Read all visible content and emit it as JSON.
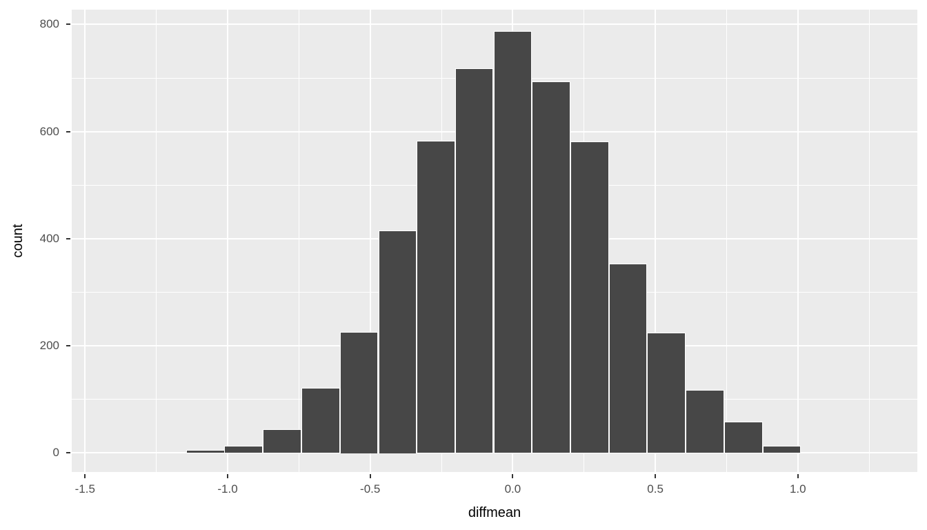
{
  "chart_data": {
    "type": "bar",
    "subtype": "histogram",
    "title": "",
    "xlabel": "diffmean",
    "ylabel": "count",
    "x_ticks": [
      {
        "value": -1.5,
        "label": "-1.5"
      },
      {
        "value": -1.0,
        "label": "-1.0"
      },
      {
        "value": -0.5,
        "label": "-0.5"
      },
      {
        "value": 0.0,
        "label": "0.0"
      },
      {
        "value": 0.5,
        "label": "0.5"
      },
      {
        "value": 1.0,
        "label": "1.0"
      }
    ],
    "y_ticks": [
      {
        "value": 0,
        "label": "0"
      },
      {
        "value": 200,
        "label": "200"
      },
      {
        "value": 400,
        "label": "400"
      },
      {
        "value": 600,
        "label": "600"
      },
      {
        "value": 800,
        "label": "800"
      }
    ],
    "x_minor_gridlines": [
      -1.25,
      -0.75,
      -0.25,
      0.25,
      0.75,
      1.25
    ],
    "y_minor_gridlines": [
      100,
      300,
      500,
      700
    ],
    "xlim": [
      -1.5466,
      1.4189
    ],
    "ylim": [
      -35.5,
      827.5
    ],
    "bin_width": 0.1348,
    "bins": [
      {
        "center": -1.348,
        "count": 2
      },
      {
        "center": -1.213,
        "count": 0
      },
      {
        "center": -1.078,
        "count": 6
      },
      {
        "center": -0.944,
        "count": 14
      },
      {
        "center": -0.809,
        "count": 45
      },
      {
        "center": -0.674,
        "count": 122
      },
      {
        "center": -0.539,
        "count": 226
      },
      {
        "center": -0.404,
        "count": 416
      },
      {
        "center": -0.27,
        "count": 583
      },
      {
        "center": -0.135,
        "count": 718
      },
      {
        "center": 0.0,
        "count": 788
      },
      {
        "center": 0.135,
        "count": 694
      },
      {
        "center": 0.27,
        "count": 581
      },
      {
        "center": 0.404,
        "count": 354
      },
      {
        "center": 0.539,
        "count": 225
      },
      {
        "center": 0.674,
        "count": 118
      },
      {
        "center": 0.809,
        "count": 59
      },
      {
        "center": 0.944,
        "count": 14
      },
      {
        "center": 1.078,
        "count": 2
      },
      {
        "center": 1.213,
        "count": 2
      },
      {
        "center": 1.348,
        "count": 1
      }
    ],
    "grid": true,
    "legend_position": "none",
    "colors": {
      "figure_background": "#FFFFFF",
      "panel_background": "#EBEBEB",
      "bar_fill": "#474747",
      "bar_outline": "#FFFFFF",
      "gridline": "#FFFFFF",
      "tick_mark": "#333333",
      "tick_label": "#4D4D4D",
      "axis_title": "#000000"
    }
  }
}
